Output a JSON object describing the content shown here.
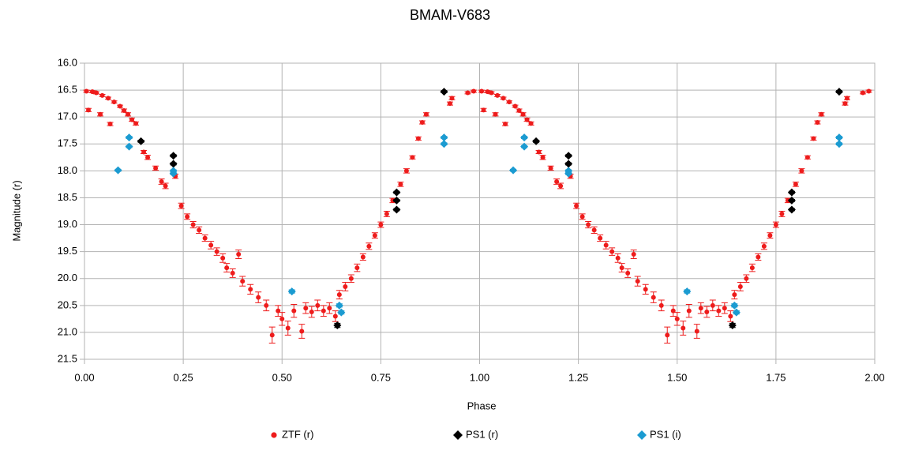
{
  "chart_data": {
    "type": "scatter",
    "title": "BMAM-V683",
    "x_label": "Phase",
    "y_label": "Magnitude (r)",
    "xlim": [
      0,
      2
    ],
    "ylim": [
      16,
      21.5
    ],
    "y_inverted": true,
    "grid": true,
    "legend": "bottom",
    "xticks": [
      {
        "value": 0,
        "label": "0.00"
      },
      0.25,
      {
        "value": 0.5,
        "label": "0.50"
      },
      0.75,
      {
        "value": 1,
        "label": "1.00"
      },
      1.25,
      {
        "value": 1.5,
        "label": "1.50"
      },
      1.75,
      {
        "value": 2,
        "label": "2.00"
      }
    ],
    "yticks": [
      {
        "value": 16,
        "label": "16.0"
      },
      16.5,
      {
        "value": 17,
        "label": "17.0"
      },
      17.5,
      {
        "value": 18,
        "label": "18.0"
      },
      18.5,
      {
        "value": 19,
        "label": "19.0"
      },
      19.5,
      {
        "value": 20,
        "label": "20.0"
      },
      20.5,
      {
        "value": 21,
        "label": "21.0"
      },
      21.5
    ],
    "series": [
      {
        "name": "ZTF (r)",
        "color": "#ee1c1c",
        "marker": "circle",
        "x": [
          0.005,
          0.01,
          0.02,
          0.03,
          0.04,
          0.045,
          0.06,
          0.065,
          0.075,
          0.09,
          0.1,
          0.11,
          0.12,
          0.13,
          0.15,
          0.16,
          0.18,
          0.195,
          0.205,
          0.23,
          0.245,
          0.26,
          0.275,
          0.29,
          0.305,
          0.32,
          0.335,
          0.35,
          0.36,
          0.375,
          0.39,
          0.4,
          0.42,
          0.44,
          0.46,
          0.475,
          0.49,
          0.5,
          0.515,
          0.53,
          0.55,
          0.56,
          0.575,
          0.59,
          0.605,
          0.62,
          0.635,
          0.645,
          0.66,
          0.675,
          0.69,
          0.705,
          0.72,
          0.735,
          0.75,
          0.765,
          0.78,
          0.8,
          0.815,
          0.83,
          0.845,
          0.855,
          0.865,
          0.925,
          0.93,
          0.97,
          0.985,
          1.005,
          1.01,
          1.02,
          1.03,
          1.04,
          1.045,
          1.06,
          1.065,
          1.075,
          1.09,
          1.1,
          1.11,
          1.12,
          1.13,
          1.15,
          1.16,
          1.18,
          1.195,
          1.205,
          1.23,
          1.245,
          1.26,
          1.275,
          1.29,
          1.305,
          1.32,
          1.335,
          1.35,
          1.36,
          1.375,
          1.39,
          1.4,
          1.42,
          1.44,
          1.46,
          1.475,
          1.49,
          1.5,
          1.515,
          1.53,
          1.55,
          1.56,
          1.575,
          1.59,
          1.605,
          1.62,
          1.635,
          1.645,
          1.66,
          1.675,
          1.69,
          1.705,
          1.72,
          1.735,
          1.75,
          1.765,
          1.78,
          1.8,
          1.815,
          1.83,
          1.845,
          1.855,
          1.865,
          1.925,
          1.93,
          1.97,
          1.985
        ],
        "values": [
          16.52,
          16.87,
          16.53,
          16.55,
          16.95,
          16.6,
          16.65,
          17.13,
          16.72,
          16.8,
          16.88,
          16.95,
          17.05,
          17.12,
          17.65,
          17.75,
          17.95,
          18.2,
          18.28,
          18.1,
          18.65,
          18.85,
          19.0,
          19.1,
          19.25,
          19.38,
          19.5,
          19.62,
          19.8,
          19.9,
          19.55,
          20.05,
          20.2,
          20.35,
          20.5,
          21.05,
          20.6,
          20.75,
          20.92,
          20.6,
          20.98,
          20.55,
          20.62,
          20.5,
          20.6,
          20.55,
          20.7,
          20.3,
          20.15,
          20.0,
          19.8,
          19.6,
          19.4,
          19.2,
          19.0,
          18.8,
          18.55,
          18.25,
          18.0,
          17.75,
          17.4,
          17.1,
          16.95,
          16.75,
          16.65,
          16.55,
          16.52,
          16.52,
          16.87,
          16.53,
          16.55,
          16.95,
          16.6,
          16.65,
          17.13,
          16.72,
          16.8,
          16.88,
          16.95,
          17.05,
          17.12,
          17.65,
          17.75,
          17.95,
          18.2,
          18.28,
          18.1,
          18.65,
          18.85,
          19.0,
          19.1,
          19.25,
          19.38,
          19.5,
          19.62,
          19.8,
          19.9,
          19.55,
          20.05,
          20.2,
          20.35,
          20.5,
          21.05,
          20.6,
          20.75,
          20.92,
          20.6,
          20.98,
          20.55,
          20.62,
          20.5,
          20.6,
          20.55,
          20.7,
          20.3,
          20.15,
          20.0,
          19.8,
          19.6,
          19.4,
          19.2,
          19.0,
          18.8,
          18.55,
          18.25,
          18.0,
          17.75,
          17.4,
          17.1,
          16.95,
          16.75,
          16.65,
          16.55,
          16.52
        ],
        "errors": [
          0.02,
          0.03,
          0.02,
          0.02,
          0.03,
          0.02,
          0.02,
          0.03,
          0.02,
          0.02,
          0.03,
          0.03,
          0.03,
          0.03,
          0.03,
          0.04,
          0.04,
          0.05,
          0.05,
          0.04,
          0.05,
          0.05,
          0.06,
          0.06,
          0.06,
          0.07,
          0.07,
          0.08,
          0.08,
          0.08,
          0.08,
          0.09,
          0.09,
          0.1,
          0.1,
          0.15,
          0.1,
          0.12,
          0.13,
          0.12,
          0.13,
          0.1,
          0.1,
          0.1,
          0.1,
          0.1,
          0.1,
          0.08,
          0.08,
          0.07,
          0.07,
          0.06,
          0.06,
          0.05,
          0.05,
          0.05,
          0.04,
          0.04,
          0.04,
          0.03,
          0.03,
          0.03,
          0.03,
          0.03,
          0.03,
          0.02,
          0.02,
          0.02,
          0.03,
          0.02,
          0.02,
          0.03,
          0.02,
          0.02,
          0.03,
          0.02,
          0.02,
          0.03,
          0.03,
          0.03,
          0.03,
          0.03,
          0.04,
          0.04,
          0.05,
          0.05,
          0.04,
          0.05,
          0.05,
          0.06,
          0.06,
          0.06,
          0.07,
          0.07,
          0.08,
          0.08,
          0.08,
          0.08,
          0.09,
          0.09,
          0.1,
          0.1,
          0.15,
          0.1,
          0.12,
          0.13,
          0.12,
          0.13,
          0.1,
          0.1,
          0.1,
          0.1,
          0.1,
          0.1,
          0.08,
          0.08,
          0.07,
          0.07,
          0.06,
          0.06,
          0.05,
          0.05,
          0.05,
          0.04,
          0.04,
          0.04,
          0.03,
          0.03,
          0.03,
          0.03,
          0.03,
          0.03,
          0.02,
          0.02
        ]
      },
      {
        "name": "PS1 (r)",
        "color": "#000000",
        "marker": "diamond",
        "x": [
          0.143,
          0.225,
          0.225,
          0.64,
          0.79,
          0.79,
          0.79,
          0.91,
          1.143,
          1.225,
          1.225,
          1.64,
          1.79,
          1.79,
          1.79,
          1.91
        ],
        "values": [
          17.45,
          17.72,
          17.87,
          20.87,
          18.4,
          18.55,
          18.72,
          16.53,
          17.45,
          17.72,
          17.87,
          20.87,
          18.4,
          18.55,
          18.72,
          16.53
        ],
        "errors": [
          0.02,
          0.02,
          0.02,
          0.04,
          0.02,
          0.02,
          0.02,
          0.02,
          0.02,
          0.02,
          0.02,
          0.04,
          0.02,
          0.02,
          0.02,
          0.02
        ]
      },
      {
        "name": "PS1 (i)",
        "color": "#1b9bd1",
        "marker": "diamond",
        "x": [
          0.085,
          0.113,
          0.113,
          0.225,
          0.225,
          0.525,
          0.645,
          0.65,
          0.91,
          0.91,
          1.085,
          1.113,
          1.113,
          1.225,
          1.225,
          1.525,
          1.645,
          1.65,
          1.91,
          1.91
        ],
        "values": [
          17.99,
          17.38,
          17.55,
          18.0,
          18.05,
          20.24,
          20.5,
          20.63,
          17.38,
          17.5,
          17.99,
          17.38,
          17.55,
          18.0,
          18.05,
          20.24,
          20.5,
          20.63,
          17.38,
          17.5
        ],
        "errors": [
          0.02,
          0.02,
          0.02,
          0.02,
          0.02,
          0.03,
          0.03,
          0.03,
          0.02,
          0.02,
          0.02,
          0.02,
          0.02,
          0.02,
          0.02,
          0.03,
          0.03,
          0.03,
          0.02,
          0.02
        ]
      }
    ]
  }
}
